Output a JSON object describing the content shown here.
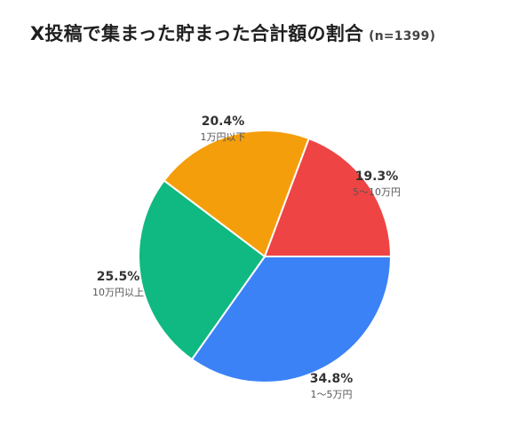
{
  "title": "X投稿で集まった貯まった合計額の割合",
  "sample": "(n=1399)",
  "chart_data": {
    "type": "pie",
    "start": "3 o'clock, clockwise",
    "slices": [
      {
        "category": "1〜5万円",
        "value": 34.8,
        "label": "34.8%",
        "color": "#3B82F6"
      },
      {
        "category": "10万円以上",
        "value": 25.5,
        "label": "25.5%",
        "color": "#10B981"
      },
      {
        "category": "1万円以下",
        "value": 20.4,
        "label": "20.4%",
        "color": "#F59E0B"
      },
      {
        "category": "5〜10万円",
        "value": 19.3,
        "label": "19.3%",
        "color": "#EF4444"
      }
    ]
  }
}
